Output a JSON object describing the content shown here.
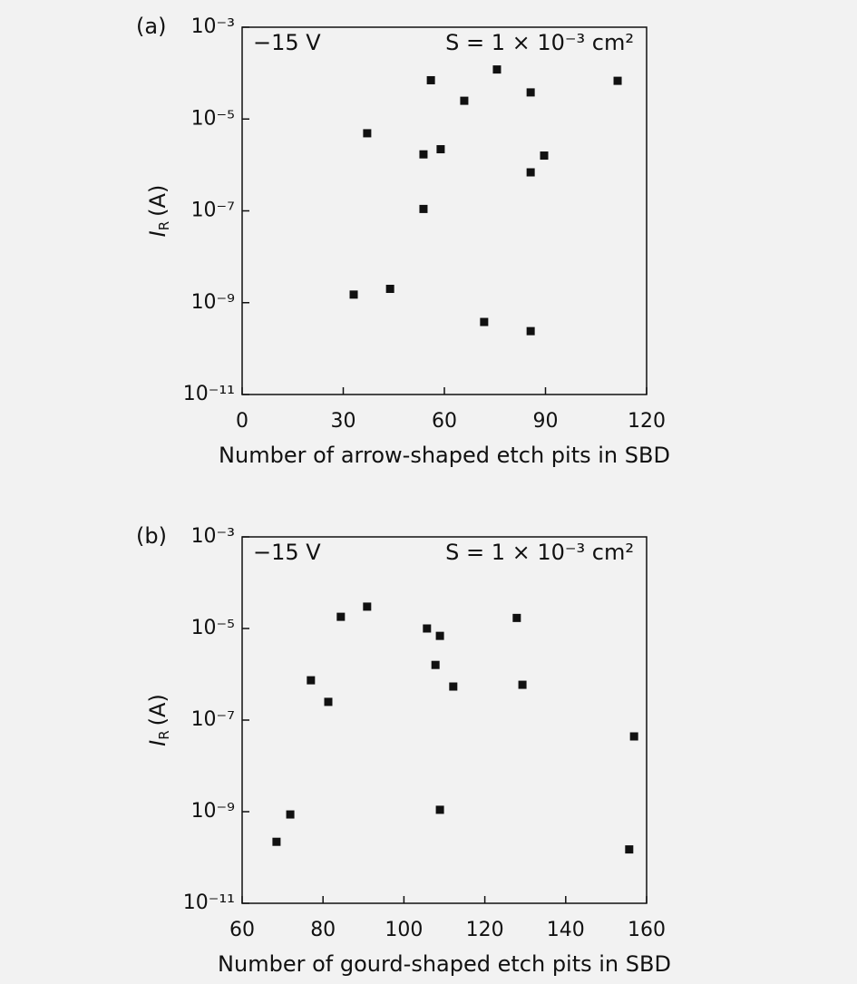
{
  "chart_data": [
    {
      "type": "scatter",
      "panel": "(a)",
      "xlabel": "Number of arrow-shaped etch pits in SBD",
      "ylabel": {
        "symbol": "I",
        "subscript": "R",
        "unit": "(A)"
      },
      "annotations": [
        "−15 V",
        "S = 1 × 10⁻³ cm²"
      ],
      "yscale": "log",
      "color": "#111111",
      "xlim": [
        0,
        120
      ],
      "xticks": [
        0,
        30,
        60,
        90,
        120
      ],
      "ylim": [
        1e-11,
        0.001
      ],
      "yticks": [
        {
          "value": 1e-11,
          "label": "10⁻¹¹"
        },
        {
          "value": 1e-09,
          "label": "10⁻⁹"
        },
        {
          "value": 1e-07,
          "label": "10⁻⁷"
        },
        {
          "value": 1e-05,
          "label": "10⁻⁵"
        },
        {
          "value": 0.001,
          "label": "10⁻³"
        }
      ],
      "x": [
        33.1,
        37.1,
        43.9,
        53.8,
        53.8,
        56,
        58.9,
        65.9,
        71.8,
        75.6,
        85.6,
        85.6,
        85.6,
        89.6,
        111.4
      ],
      "values": [
        1.5e-09,
        4.9e-06,
        2e-09,
        1.7e-06,
        1.1e-07,
        7e-05,
        2.2e-06,
        2.5e-05,
        3.8e-10,
        0.00012,
        3.8e-05,
        6.9e-07,
        2.4e-10,
        1.6e-06,
        6.8e-05
      ]
    },
    {
      "type": "scatter",
      "panel": "(b)",
      "xlabel": "Number of gourd-shaped etch pits in SBD",
      "ylabel": {
        "symbol": "I",
        "subscript": "R",
        "unit": "(A)"
      },
      "annotations": [
        "−15 V",
        "S = 1 × 10⁻³ cm²"
      ],
      "yscale": "log",
      "color": "#111111",
      "xlim": [
        60,
        160
      ],
      "xticks": [
        60,
        80,
        100,
        120,
        140,
        160
      ],
      "ylim": [
        1e-11,
        0.001
      ],
      "yticks": [
        {
          "value": 1e-11,
          "label": "10⁻¹¹"
        },
        {
          "value": 1e-09,
          "label": "10⁻⁹"
        },
        {
          "value": 1e-07,
          "label": "10⁻⁷"
        },
        {
          "value": 1e-05,
          "label": "10⁻⁵"
        },
        {
          "value": 0.001,
          "label": "10⁻³"
        }
      ],
      "x": [
        68.5,
        71.9,
        77,
        81.3,
        84.4,
        90.9,
        105.7,
        107.8,
        108.9,
        108.9,
        112.2,
        127.9,
        129.3,
        155.7,
        156.9
      ],
      "values": [
        2.2e-10,
        8.7e-10,
        7.4e-07,
        2.5e-07,
        1.8e-05,
        3e-05,
        1e-05,
        1.6e-06,
        6.9e-06,
        1.1e-09,
        5.4e-07,
        1.7e-05,
        5.9e-07,
        1.5e-10,
        4.4e-08
      ]
    }
  ]
}
